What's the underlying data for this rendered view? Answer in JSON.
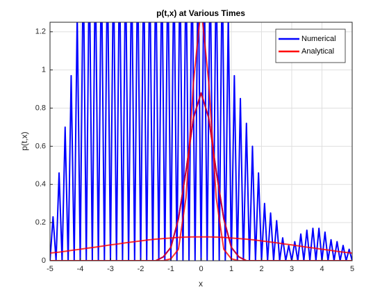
{
  "chart_data": {
    "type": "line",
    "title": "p(t,x) at Various Times",
    "xlabel": "x",
    "ylabel": "p(t,x)",
    "xlim": [
      -5,
      5
    ],
    "xticks": [
      -5,
      -4,
      -3,
      -2,
      -1,
      0,
      1,
      2,
      3,
      4,
      5
    ],
    "ylim": [
      0,
      1.25
    ],
    "yticks": [
      0,
      0.2,
      0.4,
      0.6,
      0.8,
      1,
      1.2
    ],
    "grid": true,
    "legend": "northeast",
    "series": [
      {
        "name": "Numerical",
        "color": "#0000ff",
        "curves": [
          {
            "x": [
              -5,
              -4.9,
              -4.8,
              -4.7,
              -4.6,
              -4.5,
              -4.4,
              -4.3,
              -4.2,
              -4.1,
              -4,
              -3.9,
              -3.8,
              -3.7,
              -3.6,
              -3.5,
              -3.4,
              -3.3,
              -3.2,
              -3.1,
              -3,
              -2.9,
              -2.8,
              -2.7,
              -2.6,
              -2.5,
              -2.4,
              -2.3,
              -2.2,
              -2.1,
              -2,
              -1.9,
              -1.8,
              -1.7,
              -1.6,
              -1.5,
              -1.4,
              -1.3,
              -1.2,
              -1.1,
              -1,
              -0.9,
              -0.8,
              -0.7,
              -0.6,
              -0.5,
              -0.4,
              -0.3,
              -0.2,
              -0.1,
              0,
              0.1,
              0.2,
              0.3,
              0.4,
              0.5,
              0.6,
              0.7,
              0.8,
              0.9,
              1,
              1.1,
              1.2,
              1.3,
              1.4,
              1.5,
              1.6,
              1.7,
              1.8,
              1.9,
              2,
              2.1,
              2.2,
              2.3,
              2.4,
              2.5,
              2.6,
              2.7,
              2.8,
              2.9,
              3,
              3.1,
              3.2,
              3.3,
              3.4,
              3.5,
              3.6,
              3.7,
              3.8,
              3.9,
              4,
              4.1,
              4.2,
              4.3,
              4.4,
              4.5,
              4.6,
              4.7,
              4.8,
              4.9,
              5
            ],
            "values": [
              0,
              0.23,
              0,
              0.46,
              0,
              0.7,
              0,
              0.97,
              0,
              1.3,
              0,
              1.6,
              0,
              1.6,
              0,
              1.6,
              0,
              1.6,
              0,
              1.6,
              0,
              1.6,
              0,
              1.6,
              0,
              1.6,
              0,
              1.6,
              0,
              1.6,
              0,
              1.6,
              0,
              1.6,
              0,
              1.6,
              0,
              1.6,
              0,
              1.6,
              0,
              1.6,
              0,
              1.6,
              0,
              1.6,
              0,
              1.6,
              0,
              1.6,
              0,
              1.6,
              0,
              1.6,
              0,
              1.6,
              0,
              1.6,
              0,
              1.3,
              0,
              0.97,
              0,
              0.85,
              0,
              0.72,
              0,
              0.6,
              0,
              0.46,
              0,
              0.3,
              0,
              0.25,
              0,
              0.21,
              0,
              0.12,
              0,
              0.08,
              0,
              0.1,
              0,
              0.14,
              0,
              0.16,
              0,
              0.17,
              0,
              0.17,
              0,
              0.15,
              0,
              0.11,
              0,
              0.1,
              0,
              0.08,
              0,
              0.06,
              0
            ]
          },
          {
            "x": [
              -5,
              -4.75,
              -4.5,
              -4.25,
              -4,
              -3.75,
              -3.5,
              -3.25,
              -3,
              -2.75,
              -2.5,
              -2.25,
              -2,
              -1.75,
              -1.5,
              -1.25,
              -1,
              -0.75,
              -0.5,
              -0.25,
              0,
              0.25,
              0.5,
              0.75,
              1,
              1.25,
              1.5,
              1.75,
              2,
              2.25,
              2.5,
              2.75,
              3,
              3.25,
              3.5,
              3.75,
              4,
              4.25,
              4.5,
              4.75,
              5
            ],
            "values": [
              0,
              0,
              0,
              0,
              0,
              0,
              0,
              0,
              0,
              0,
              0,
              0,
              0,
              0,
              0,
              0.02,
              0.07,
              0.22,
              0.47,
              0.75,
              0.88,
              0.75,
              0.47,
              0.22,
              0.07,
              0.02,
              0,
              0,
              0,
              0,
              0,
              0,
              0,
              0,
              0,
              0,
              0,
              0,
              0,
              0,
              0
            ]
          }
        ]
      },
      {
        "name": "Analytical",
        "color": "#ff0000",
        "curves": [
          {
            "x": [
              -5,
              -4.75,
              -4.5,
              -4.25,
              -4,
              -3.75,
              -3.5,
              -3.25,
              -3,
              -2.75,
              -2.5,
              -2.25,
              -2,
              -1.75,
              -1.5,
              -1.25,
              -1,
              -0.75,
              -0.5,
              -0.25,
              0,
              0.25,
              0.5,
              0.75,
              1,
              1.25,
              1.5,
              1.75,
              2,
              2.25,
              2.5,
              2.75,
              3,
              3.25,
              3.5,
              3.75,
              4,
              4.25,
              4.5,
              4.75,
              5
            ],
            "values": [
              0,
              0,
              0,
              0,
              0,
              0,
              0,
              0,
              0,
              0,
              0,
              0,
              0,
              0,
              0,
              0,
              0.01,
              0.06,
              0.33,
              0.94,
              1.33,
              0.94,
              0.33,
              0.06,
              0.01,
              0,
              0,
              0,
              0,
              0,
              0,
              0,
              0,
              0,
              0,
              0,
              0,
              0,
              0,
              0,
              0
            ]
          },
          {
            "x": [
              -5,
              -4.75,
              -4.5,
              -4.25,
              -4,
              -3.75,
              -3.5,
              -3.25,
              -3,
              -2.75,
              -2.5,
              -2.25,
              -2,
              -1.75,
              -1.5,
              -1.25,
              -1,
              -0.75,
              -0.5,
              -0.25,
              0,
              0.25,
              0.5,
              0.75,
              1,
              1.25,
              1.5,
              1.75,
              2,
              2.25,
              2.5,
              2.75,
              3,
              3.25,
              3.5,
              3.75,
              4,
              4.25,
              4.5,
              4.75,
              5
            ],
            "values": [
              0,
              0,
              0,
              0,
              0,
              0,
              0,
              0,
              0,
              0,
              0,
              0,
              0,
              0,
              0,
              0.02,
              0.07,
              0.22,
              0.47,
              0.75,
              0.88,
              0.75,
              0.47,
              0.22,
              0.07,
              0.02,
              0,
              0,
              0,
              0,
              0,
              0,
              0,
              0,
              0,
              0,
              0,
              0,
              0,
              0,
              0
            ]
          },
          {
            "x": [
              -5,
              -4.75,
              -4.5,
              -4.25,
              -4,
              -3.75,
              -3.5,
              -3.25,
              -3,
              -2.75,
              -2.5,
              -2.25,
              -2,
              -1.75,
              -1.5,
              -1.25,
              -1,
              -0.75,
              -0.5,
              -0.25,
              0,
              0.25,
              0.5,
              0.75,
              1,
              1.25,
              1.5,
              1.75,
              2,
              2.25,
              2.5,
              2.75,
              3,
              3.25,
              3.5,
              3.75,
              4,
              4.25,
              4.5,
              4.75,
              5
            ],
            "values": [
              0.04,
              0.044,
              0.049,
              0.055,
              0.06,
              0.066,
              0.071,
              0.077,
              0.083,
              0.088,
              0.094,
              0.099,
              0.104,
              0.109,
              0.113,
              0.116,
              0.119,
              0.122,
              0.124,
              0.125,
              0.125,
              0.125,
              0.124,
              0.122,
              0.119,
              0.116,
              0.113,
              0.109,
              0.104,
              0.099,
              0.094,
              0.088,
              0.083,
              0.077,
              0.071,
              0.066,
              0.06,
              0.055,
              0.049,
              0.044,
              0.04
            ]
          }
        ]
      }
    ]
  }
}
